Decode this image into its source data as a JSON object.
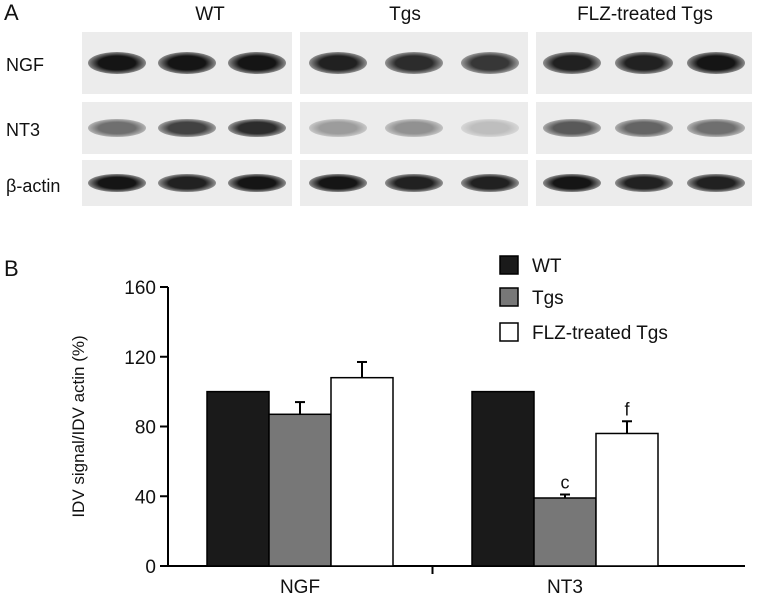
{
  "panel_a": {
    "letter": "A",
    "groups": [
      "WT",
      "Tgs",
      "FLZ-treated Tgs"
    ],
    "rows": [
      "NGF",
      "NT3",
      "β-actin"
    ]
  },
  "panel_b": {
    "letter": "B"
  },
  "chart_data": {
    "type": "bar",
    "categories": [
      "NGF",
      "NT3"
    ],
    "series": [
      {
        "name": "WT",
        "values": [
          100,
          100
        ],
        "errors": [
          0,
          0
        ],
        "color": "#1a1a1a"
      },
      {
        "name": "Tgs",
        "values": [
          87,
          39
        ],
        "errors": [
          7,
          2
        ],
        "color": "#777777"
      },
      {
        "name": "FLZ-treated Tgs",
        "values": [
          108,
          76
        ],
        "errors": [
          9,
          7
        ],
        "color": "#ffffff"
      }
    ],
    "annotations": [
      {
        "category": "NT3",
        "series": "Tgs",
        "text": "c"
      },
      {
        "category": "NT3",
        "series": "FLZ-treated Tgs",
        "text": "f"
      }
    ],
    "title": "",
    "xlabel": "",
    "ylabel": "IDV signal/IDV actin (%)",
    "ylim": [
      0,
      160
    ],
    "yticks": [
      0,
      40,
      80,
      120,
      160
    ],
    "grid": false,
    "legend_position": "top-right"
  }
}
